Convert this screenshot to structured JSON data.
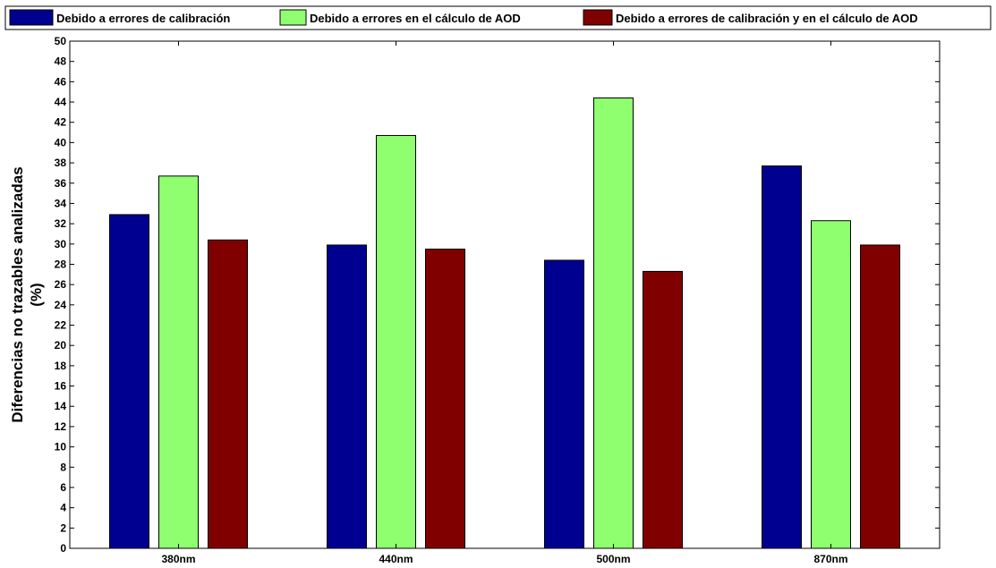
{
  "chart_data": {
    "type": "bar",
    "categories": [
      "380nm",
      "440nm",
      "500nm",
      "870nm"
    ],
    "series": [
      {
        "name": "Debido a errores de calibración",
        "color": "#000090",
        "values": [
          32.9,
          29.9,
          28.4,
          37.7
        ]
      },
      {
        "name": "Debido a errores en el cálculo de AOD",
        "color": "#8fff70",
        "values": [
          36.7,
          40.7,
          44.4,
          32.3
        ]
      },
      {
        "name": "Debido a errores de calibración y en el cálculo de AOD",
        "color": "#800000",
        "values": [
          30.4,
          29.5,
          27.3,
          29.9
        ]
      }
    ],
    "title": "",
    "xlabel": "",
    "ylabel_line1": "Diferencias no trazables analizadas",
    "ylabel_line2": "(%)",
    "ylim": [
      0,
      50
    ],
    "yticks": [
      "0",
      "2",
      "4",
      "6",
      "8",
      "10",
      "12",
      "14",
      "16",
      "18",
      "20",
      "22",
      "24",
      "26",
      "28",
      "30",
      "32",
      "34",
      "36",
      "38",
      "40",
      "42",
      "44",
      "46",
      "48",
      "50"
    ],
    "grid": false,
    "legend_position": "top"
  }
}
